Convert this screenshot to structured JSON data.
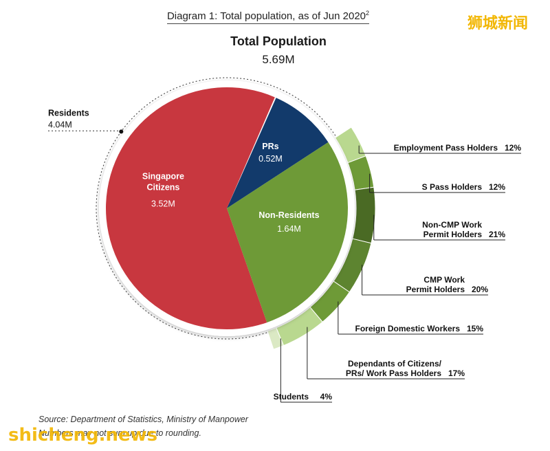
{
  "header": {
    "title": "Diagram 1: Total population, as of Jun 2020",
    "title_sup": "2",
    "brand": "狮城新闻"
  },
  "total": {
    "label": "Total Population",
    "value": "5.69M"
  },
  "chart_data": {
    "type": "pie",
    "title": "Total Population",
    "total": 5.69,
    "unit": "M",
    "slices": [
      {
        "name": "Singapore Citizens",
        "label_lines": [
          "Singapore",
          "Citizens"
        ],
        "value": 3.52,
        "value_label": "3.52M",
        "color": "#c8373f"
      },
      {
        "name": "PRs",
        "label_lines": [
          "PRs"
        ],
        "value": 0.52,
        "value_label": "0.52M",
        "color": "#123a6b"
      },
      {
        "name": "Non-Residents",
        "label_lines": [
          "Non-Residents"
        ],
        "value": 1.64,
        "value_label": "1.64M",
        "color": "#6e9a37"
      }
    ],
    "residents": {
      "label": "Residents",
      "value_label": "4.04M",
      "value": 4.04
    },
    "non_resident_breakdown": [
      {
        "label_lines": [
          "Employment Pass Holders"
        ],
        "percent": 12,
        "percent_label": "12%",
        "color": "#b9d88f"
      },
      {
        "label_lines": [
          "S Pass Holders"
        ],
        "percent": 12,
        "percent_label": "12%",
        "color": "#6e9a37"
      },
      {
        "label_lines": [
          "Non-CMP Work",
          "Permit Holders"
        ],
        "percent": 21,
        "percent_label": "21%",
        "color": "#4a6a24"
      },
      {
        "label_lines": [
          "CMP Work",
          "Permit Holders"
        ],
        "percent": 20,
        "percent_label": "20%",
        "color": "#5d8430"
      },
      {
        "label_lines": [
          "Foreign Domestic Workers"
        ],
        "percent": 15,
        "percent_label": "15%",
        "color": "#6e9a37"
      },
      {
        "label_lines": [
          "Dependants of Citizens/",
          "PRs/ Work Pass Holders"
        ],
        "percent": 17,
        "percent_label": "17%",
        "color": "#b9d88f"
      },
      {
        "label_lines": [
          "Students"
        ],
        "percent": 4,
        "percent_label": "4%",
        "color": "#dbe9c4"
      }
    ]
  },
  "footer": {
    "source": "Source: Department of Statistics, Ministry of Manpower",
    "note": "Numbers may not sum up due to rounding.",
    "watermark": "shicheng.news"
  }
}
